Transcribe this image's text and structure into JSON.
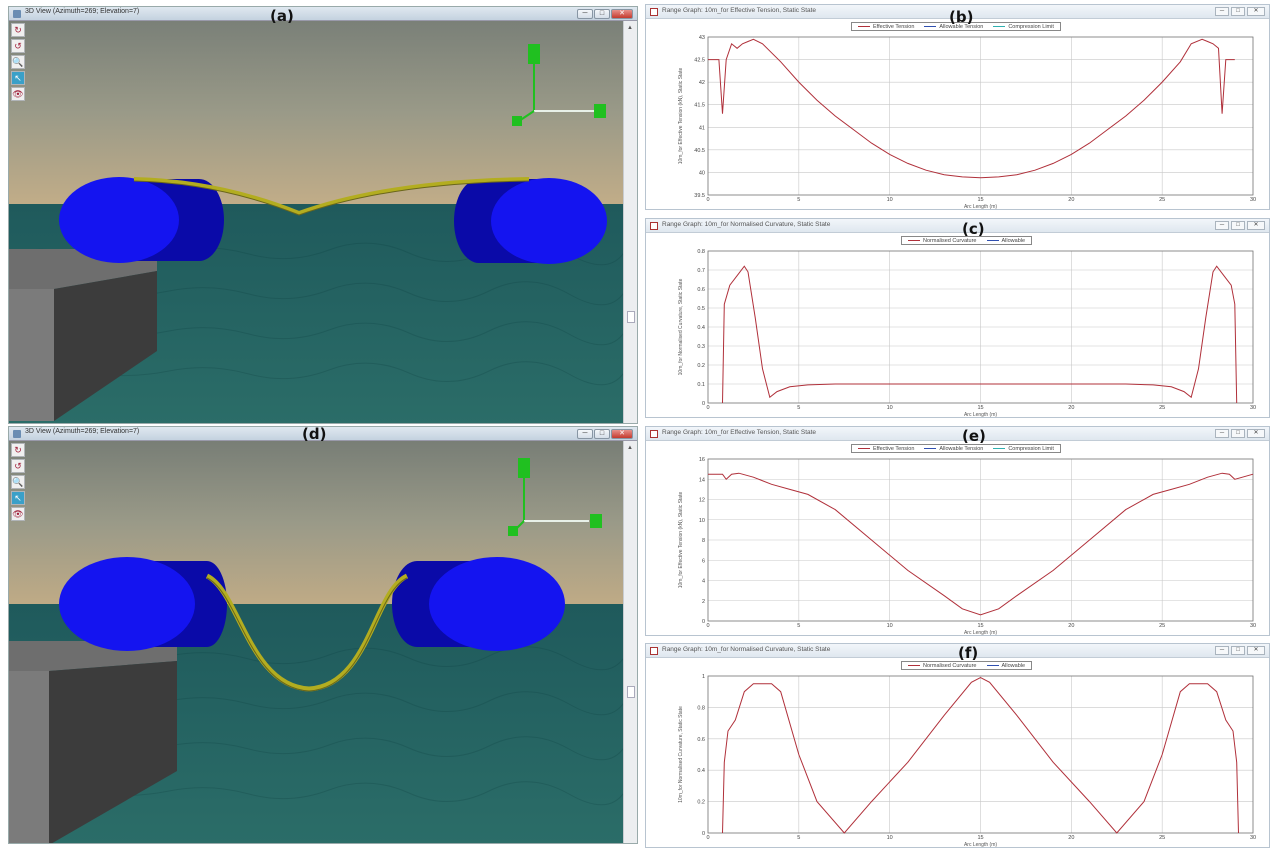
{
  "panels": {
    "a": {
      "label": "(a)",
      "window_title": "3D View (Azimuth=269; Elevation=7)",
      "buttons": [
        "─",
        "□",
        "✕"
      ],
      "tools": [
        {
          "icon": "rotate-icon",
          "glyph": "↻"
        },
        {
          "icon": "pan-icon",
          "glyph": "↺"
        },
        {
          "icon": "zoom-icon",
          "glyph": "🔍"
        },
        {
          "icon": "select-icon",
          "glyph": "↖"
        },
        {
          "icon": "eye-icon",
          "glyph": "👁"
        }
      ],
      "colors": {
        "sky_top": "#8a8a7e",
        "sky_bottom": "#b8a382",
        "sea": "#2a6866",
        "buoy": "#1010e8",
        "hose": "#b7b124",
        "axis": "#28c020"
      }
    },
    "b": {
      "label": "(b)",
      "window_title": "Range Graph: 10m_for Effective Tension, Static State",
      "legend": [
        {
          "label": "Effective Tension",
          "color": "#b0303a"
        },
        {
          "label": "Allowable Tension",
          "color": "#3050b0"
        },
        {
          "label": "Compression Limit",
          "color": "#30b0b0"
        }
      ],
      "ylabel": "10m_for Effective Tension (kN), Static State",
      "xlabel": "Arc Length (m)"
    },
    "c": {
      "label": "(c)",
      "window_title": "Range Graph: 10m_for Normalised Curvature, Static State",
      "legend": [
        {
          "label": "Normalised Curvature",
          "color": "#b0303a"
        },
        {
          "label": "Allowable",
          "color": "#3050b0"
        }
      ],
      "ylabel": "10m_for Normalised Curvature, Static State",
      "xlabel": "Arc Length (m)"
    },
    "d": {
      "label": "(d)",
      "window_title": "3D View (Azimuth=269; Elevation=7)",
      "buttons": [
        "─",
        "□",
        "✕"
      ],
      "tools": [
        {
          "icon": "rotate-icon",
          "glyph": "↻"
        },
        {
          "icon": "pan-icon",
          "glyph": "↺"
        },
        {
          "icon": "zoom-icon",
          "glyph": "🔍"
        },
        {
          "icon": "select-icon",
          "glyph": "↖"
        },
        {
          "icon": "eye-icon",
          "glyph": "👁"
        }
      ]
    },
    "e": {
      "label": "(e)",
      "window_title": "Range Graph: 10m_for Effective Tension, Static State",
      "legend": [
        {
          "label": "Effective Tension",
          "color": "#b0303a"
        },
        {
          "label": "Allowable Tension",
          "color": "#3050b0"
        },
        {
          "label": "Compression Limit",
          "color": "#30b0b0"
        }
      ],
      "ylabel": "10m_for Effective Tension (kN), Static State",
      "xlabel": "Arc Length (m)"
    },
    "f": {
      "label": "(f)",
      "window_title": "Range Graph: 10m_for Normalised Curvature, Static State",
      "legend": [
        {
          "label": "Normalised Curvature",
          "color": "#b0303a"
        },
        {
          "label": "Allowable",
          "color": "#3050b0"
        }
      ],
      "ylabel": "10m_for Normalised Curvature, Static State",
      "xlabel": "Arc Length (m)"
    }
  },
  "chart_data": [
    {
      "id": "b",
      "type": "line",
      "xlim": [
        0,
        30
      ],
      "ylim": [
        39.5,
        43
      ],
      "xticks": [
        0,
        5,
        10,
        15,
        20,
        25,
        30
      ],
      "yticks": [
        39.5,
        40,
        40.5,
        41,
        41.5,
        42,
        42.5,
        43
      ],
      "grid": true,
      "series": [
        {
          "name": "Effective Tension",
          "color": "#b0303a",
          "x": [
            0,
            0.6,
            0.8,
            1.0,
            1.3,
            1.6,
            1.9,
            2.2,
            2.5,
            3,
            4,
            5,
            6,
            7,
            8,
            9,
            10,
            11,
            12,
            13,
            14,
            15,
            16,
            17,
            18,
            19,
            20,
            21,
            22,
            23,
            24,
            25,
            26,
            26.6,
            27.2,
            27.5,
            27.8,
            28.1,
            28.3,
            28.5,
            28.8,
            29
          ],
          "y": [
            42.5,
            42.5,
            41.3,
            42.5,
            42.85,
            42.75,
            42.85,
            42.9,
            42.95,
            42.85,
            42.45,
            42.0,
            41.6,
            41.25,
            40.95,
            40.65,
            40.4,
            40.2,
            40.05,
            39.95,
            39.9,
            39.88,
            39.9,
            39.95,
            40.05,
            40.2,
            40.4,
            40.65,
            40.95,
            41.25,
            41.6,
            42.0,
            42.45,
            42.85,
            42.95,
            42.9,
            42.85,
            42.75,
            41.3,
            42.5,
            42.5,
            42.5
          ]
        }
      ]
    },
    {
      "id": "c",
      "type": "line",
      "xlim": [
        0,
        30
      ],
      "ylim": [
        0,
        0.8
      ],
      "xticks": [
        0,
        5,
        10,
        15,
        20,
        25,
        30
      ],
      "yticks": [
        0,
        0.1,
        0.2,
        0.3,
        0.4,
        0.5,
        0.6,
        0.7,
        0.8
      ],
      "grid": true,
      "series": [
        {
          "name": "Normalised Curvature",
          "color": "#b0303a",
          "x": [
            0.8,
            0.9,
            1.2,
            1.6,
            2.0,
            2.2,
            2.6,
            3.0,
            3.4,
            3.8,
            4.5,
            5.5,
            7,
            10,
            15,
            20,
            23,
            24.5,
            25.5,
            26.2,
            26.6,
            27.0,
            27.4,
            27.8,
            28.0,
            28.4,
            28.8,
            29.0,
            29.1
          ],
          "y": [
            0,
            0.52,
            0.62,
            0.67,
            0.72,
            0.69,
            0.45,
            0.18,
            0.03,
            0.06,
            0.085,
            0.095,
            0.1,
            0.1,
            0.1,
            0.1,
            0.1,
            0.095,
            0.085,
            0.06,
            0.03,
            0.18,
            0.45,
            0.69,
            0.72,
            0.67,
            0.62,
            0.52,
            0
          ]
        }
      ]
    },
    {
      "id": "e",
      "type": "line",
      "xlim": [
        0,
        30
      ],
      "ylim": [
        0,
        16
      ],
      "xticks": [
        0,
        5,
        10,
        15,
        20,
        25,
        30
      ],
      "yticks": [
        0,
        2,
        4,
        6,
        8,
        10,
        12,
        14,
        16
      ],
      "grid": true,
      "series": [
        {
          "name": "Effective Tension",
          "color": "#b0303a",
          "x": [
            0,
            0.8,
            1.0,
            1.3,
            1.7,
            2.5,
            3.5,
            4.5,
            5.5,
            7,
            9,
            11,
            13,
            14,
            15,
            16,
            17,
            19,
            21,
            23,
            24.5,
            25.5,
            26.5,
            27.5,
            28.3,
            28.7,
            29,
            30
          ],
          "y": [
            14.5,
            14.5,
            14.0,
            14.5,
            14.6,
            14.2,
            13.5,
            13.0,
            12.5,
            11.0,
            8.0,
            5.0,
            2.5,
            1.2,
            0.6,
            1.2,
            2.5,
            5.0,
            8.0,
            11.0,
            12.5,
            13.0,
            13.5,
            14.2,
            14.6,
            14.5,
            14.0,
            14.5
          ]
        }
      ]
    },
    {
      "id": "f",
      "type": "line",
      "xlim": [
        0,
        30
      ],
      "ylim": [
        0,
        1
      ],
      "xticks": [
        0,
        5,
        10,
        15,
        20,
        25,
        30
      ],
      "yticks": [
        0,
        0.2,
        0.4,
        0.6,
        0.8,
        1
      ],
      "grid": true,
      "series": [
        {
          "name": "Normalised Curvature",
          "color": "#b0303a",
          "x": [
            0.8,
            0.9,
            1.1,
            1.5,
            2.0,
            2.5,
            3.5,
            4.0,
            5.0,
            6.0,
            7.5,
            9,
            11,
            13,
            14.5,
            15,
            15.5,
            17,
            19,
            21,
            22.5,
            24,
            25,
            26,
            26.5,
            27.5,
            28.0,
            28.5,
            28.9,
            29.1,
            29.2
          ],
          "y": [
            0,
            0.45,
            0.65,
            0.72,
            0.9,
            0.95,
            0.95,
            0.9,
            0.5,
            0.2,
            0.0,
            0.2,
            0.45,
            0.75,
            0.96,
            0.99,
            0.96,
            0.75,
            0.45,
            0.2,
            0.0,
            0.2,
            0.5,
            0.9,
            0.95,
            0.95,
            0.9,
            0.72,
            0.65,
            0.45,
            0
          ]
        }
      ]
    }
  ]
}
